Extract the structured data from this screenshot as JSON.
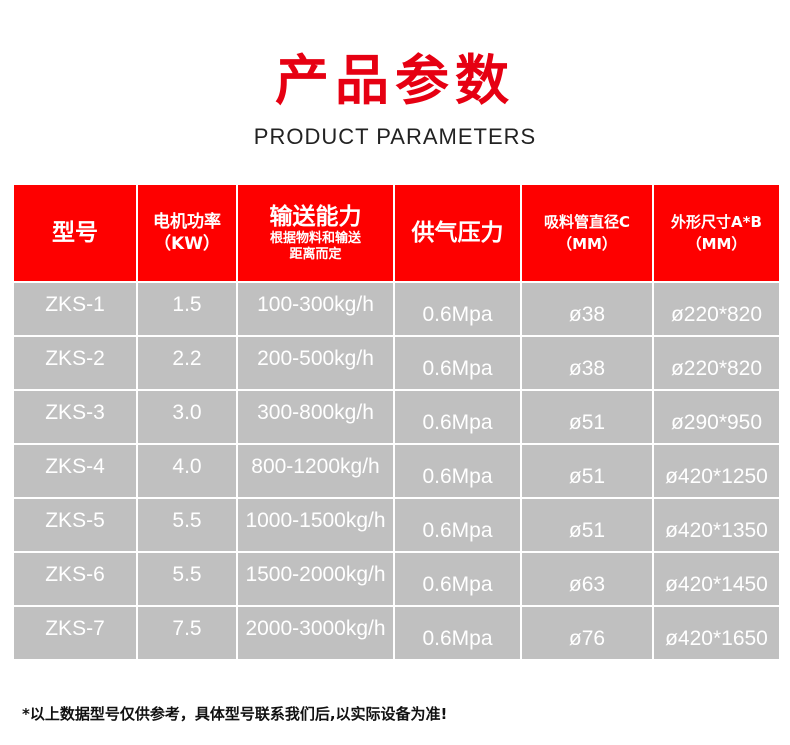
{
  "title": "产品参数",
  "subtitle": "PRODUCT PARAMETERS",
  "table": {
    "headers": [
      {
        "main": "型号"
      },
      {
        "main": "电机功率",
        "sub": "（KW）"
      },
      {
        "main": "输送能力",
        "note1": "根据物料和输送",
        "note2": "距离而定"
      },
      {
        "main": "供气压力"
      },
      {
        "main": "吸料管直径C",
        "sub": "（MM）"
      },
      {
        "main": "外形尺寸A*B",
        "sub": "（MM）"
      }
    ],
    "rows": [
      [
        "ZKS-1",
        "1.5",
        "100-300kg/h",
        "0.6Mpa",
        "ø38",
        "ø220*820"
      ],
      [
        "ZKS-2",
        "2.2",
        "200-500kg/h",
        "0.6Mpa",
        "ø38",
        "ø220*820"
      ],
      [
        "ZKS-3",
        "3.0",
        "300-800kg/h",
        "0.6Mpa",
        "ø51",
        "ø290*950"
      ],
      [
        "ZKS-4",
        "4.0",
        "800-1200kg/h",
        "0.6Mpa",
        "ø51",
        "ø420*1250"
      ],
      [
        "ZKS-5",
        "5.5",
        "1000-1500kg/h",
        "0.6Mpa",
        "ø51",
        "ø420*1350"
      ],
      [
        "ZKS-6",
        "5.5",
        "1500-2000kg/h",
        "0.6Mpa",
        "ø63",
        "ø420*1450"
      ],
      [
        "ZKS-7",
        "7.5",
        "2000-3000kg/h",
        "0.6Mpa",
        "ø76",
        "ø420*1650"
      ]
    ]
  },
  "footnote": "*以上数据型号仅供参考，具体型号联系我们后,以实际设备为准!",
  "colors": {
    "header": "#fe0000",
    "row": "#c0c0c0",
    "title": "#e60012"
  }
}
